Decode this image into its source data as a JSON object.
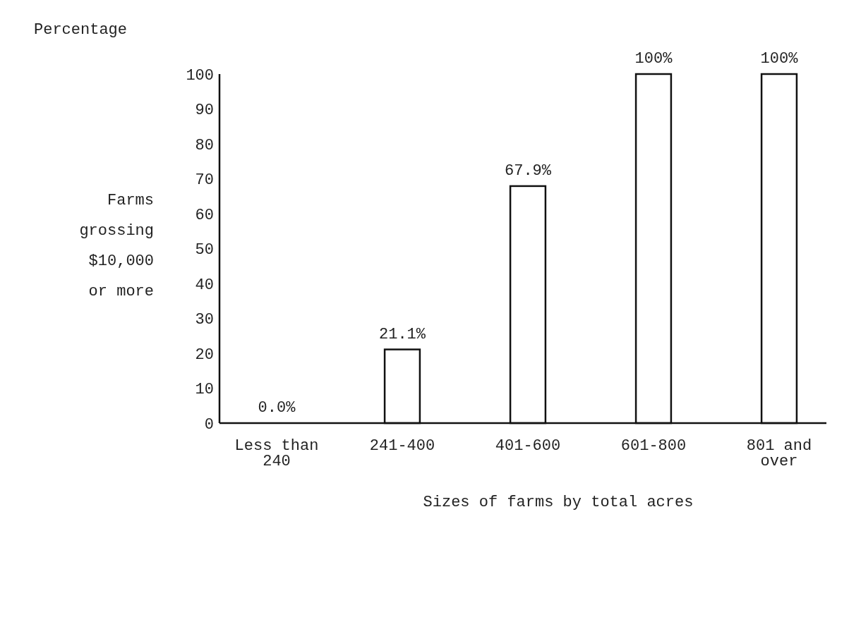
{
  "chart_data": {
    "type": "bar",
    "xlabel": "Sizes of farms by total acres",
    "ylabel": "Farms\ngrossing\n$10,000\nor more",
    "annotations": [
      "Percentage"
    ],
    "categories": [
      "Less than\n240",
      "241-400",
      "401-600",
      "601-800",
      "801 and\nover"
    ],
    "values": [
      0,
      21.1,
      67.9,
      100,
      100
    ],
    "value_labels": [
      "0.0%",
      "21.1%",
      "67.9%",
      "100%",
      "100%"
    ],
    "color": "#ffffff",
    "ylim": [
      0,
      100
    ],
    "yticks": [
      0,
      10,
      20,
      30,
      40,
      50,
      60,
      70,
      80,
      90,
      100
    ],
    "grid": false
  }
}
